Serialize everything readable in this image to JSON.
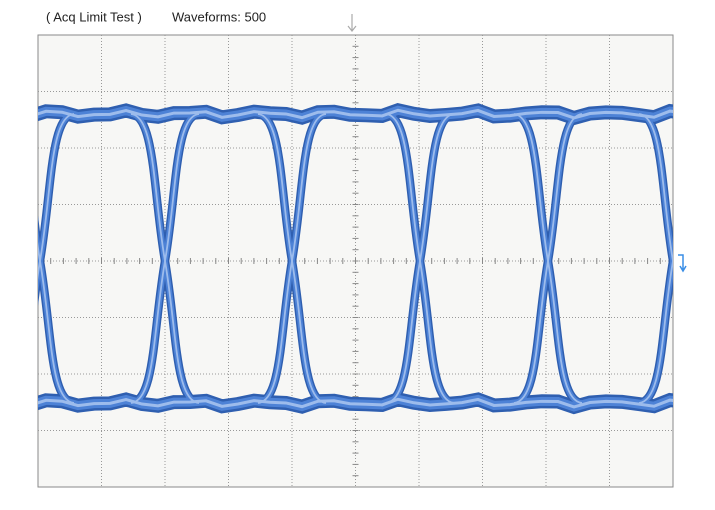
{
  "status": {
    "mode": "( Acq Limit Test )",
    "waveforms": "Waveforms: 500"
  }
}
